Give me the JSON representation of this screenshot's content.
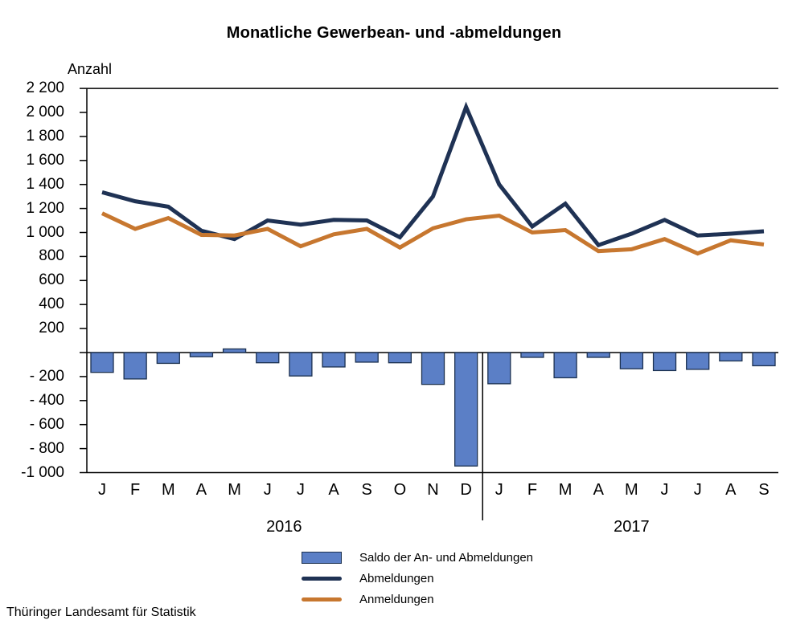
{
  "title": "Monatliche Gewerbean- und -abmeldungen",
  "y_axis_label": "Anzahl",
  "footer": "Thüringer Landesamt für Statistik",
  "colors": {
    "saldo_bar_fill": "#5B7FC6",
    "saldo_bar_border": "#1C3150",
    "abmeldungen_line": "#1F3254",
    "anmeldungen_line": "#C7772F",
    "axis": "#000000",
    "background": "#FFFFFF"
  },
  "chart_data": {
    "type": "bar",
    "subtype": "combined bar and line chart",
    "months": [
      "J",
      "F",
      "M",
      "A",
      "M",
      "J",
      "J",
      "A",
      "S",
      "O",
      "N",
      "D",
      "J",
      "F",
      "M",
      "A",
      "M",
      "J",
      "J",
      "A",
      "S"
    ],
    "years": [
      {
        "label": "2016",
        "month_count": 12
      },
      {
        "label": "2017",
        "month_count": 9
      }
    ],
    "ylim": [
      -1000,
      2200
    ],
    "grid": false,
    "legend_position": "bottom",
    "y_ticks": [
      {
        "value": 2200,
        "label": "2 200"
      },
      {
        "value": 2000,
        "label": "2 000"
      },
      {
        "value": 1800,
        "label": "1 800"
      },
      {
        "value": 1600,
        "label": "1 600"
      },
      {
        "value": 1400,
        "label": "1 400"
      },
      {
        "value": 1200,
        "label": "1 200"
      },
      {
        "value": 1000,
        "label": "1 000"
      },
      {
        "value": 800,
        "label": "800"
      },
      {
        "value": 600,
        "label": "600"
      },
      {
        "value": 400,
        "label": "400"
      },
      {
        "value": 200,
        "label": "200"
      },
      {
        "value": 0,
        "label": ""
      },
      {
        "value": -200,
        "label": "- 200"
      },
      {
        "value": -400,
        "label": "- 400"
      },
      {
        "value": -600,
        "label": "- 600"
      },
      {
        "value": -800,
        "label": "- 800"
      },
      {
        "value": -1000,
        "label": "-1 000"
      }
    ],
    "series": [
      {
        "name": "Saldo der An- und Abmeldungen",
        "type": "bar",
        "color": "#5B7FC6",
        "border_color": "#1C3150",
        "values": [
          -165,
          -220,
          -90,
          -35,
          30,
          -85,
          -195,
          -120,
          -80,
          -85,
          -265,
          -945,
          -260,
          -40,
          -210,
          -40,
          -135,
          -150,
          -140,
          -70,
          -110
        ]
      },
      {
        "name": "Abmeldungen",
        "type": "line",
        "color": "#1F3254",
        "values": [
          1335,
          1260,
          1215,
          1015,
          945,
          1100,
          1065,
          1105,
          1100,
          960,
          1300,
          2045,
          1400,
          1050,
          1240,
          895,
          990,
          1105,
          975,
          990,
          1010
        ]
      },
      {
        "name": "Anmeldungen",
        "type": "line",
        "color": "#C7772F",
        "values": [
          1160,
          1030,
          1120,
          980,
          975,
          1030,
          885,
          985,
          1030,
          875,
          1035,
          1110,
          1140,
          1000,
          1020,
          845,
          860,
          945,
          825,
          935,
          900
        ]
      }
    ]
  }
}
